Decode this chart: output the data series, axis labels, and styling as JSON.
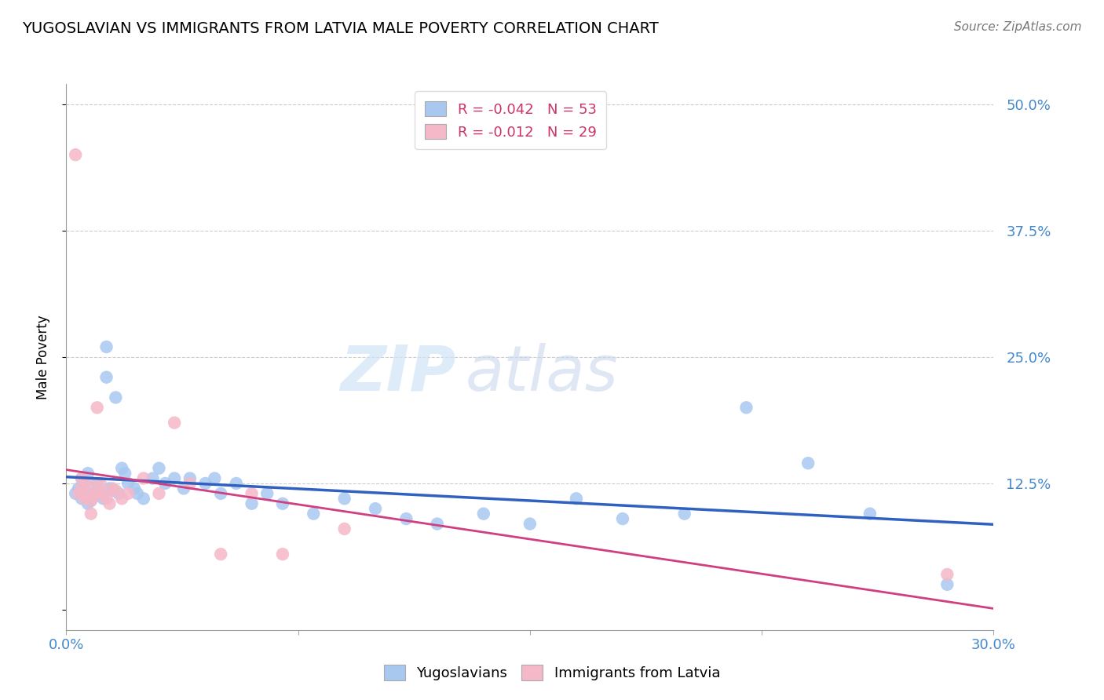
{
  "title": "YUGOSLAVIAN VS IMMIGRANTS FROM LATVIA MALE POVERTY CORRELATION CHART",
  "source": "Source: ZipAtlas.com",
  "ylabel": "Male Poverty",
  "xlim": [
    0.0,
    0.3
  ],
  "ylim": [
    -0.02,
    0.52
  ],
  "yticks": [
    0.0,
    0.125,
    0.25,
    0.375,
    0.5
  ],
  "ytick_labels": [
    "",
    "12.5%",
    "25.0%",
    "37.5%",
    "50.0%"
  ],
  "xticks": [
    0.0,
    0.075,
    0.15,
    0.225,
    0.3
  ],
  "xtick_labels": [
    "0.0%",
    "",
    "",
    "",
    "30.0%"
  ],
  "blue_R": "-0.042",
  "blue_N": "53",
  "pink_R": "-0.012",
  "pink_N": "29",
  "blue_color": "#a8c8f0",
  "pink_color": "#f5b8c8",
  "blue_line_color": "#3060c0",
  "pink_line_color": "#d04080",
  "grid_color": "#cccccc",
  "watermark_zip": "ZIP",
  "watermark_atlas": "atlas",
  "blue_x": [
    0.003,
    0.004,
    0.005,
    0.005,
    0.006,
    0.007,
    0.007,
    0.008,
    0.008,
    0.009,
    0.01,
    0.01,
    0.011,
    0.012,
    0.013,
    0.013,
    0.014,
    0.015,
    0.016,
    0.017,
    0.018,
    0.019,
    0.02,
    0.022,
    0.023,
    0.025,
    0.028,
    0.03,
    0.032,
    0.035,
    0.038,
    0.04,
    0.045,
    0.048,
    0.05,
    0.055,
    0.06,
    0.065,
    0.07,
    0.08,
    0.09,
    0.1,
    0.11,
    0.12,
    0.135,
    0.15,
    0.165,
    0.18,
    0.2,
    0.22,
    0.24,
    0.26,
    0.285
  ],
  "blue_y": [
    0.115,
    0.12,
    0.11,
    0.13,
    0.125,
    0.105,
    0.135,
    0.115,
    0.108,
    0.112,
    0.118,
    0.125,
    0.115,
    0.11,
    0.26,
    0.23,
    0.12,
    0.118,
    0.21,
    0.115,
    0.14,
    0.135,
    0.125,
    0.12,
    0.115,
    0.11,
    0.13,
    0.14,
    0.125,
    0.13,
    0.12,
    0.13,
    0.125,
    0.13,
    0.115,
    0.125,
    0.105,
    0.115,
    0.105,
    0.095,
    0.11,
    0.1,
    0.09,
    0.085,
    0.095,
    0.085,
    0.11,
    0.09,
    0.095,
    0.2,
    0.145,
    0.095,
    0.025
  ],
  "pink_x": [
    0.003,
    0.004,
    0.005,
    0.005,
    0.006,
    0.007,
    0.007,
    0.008,
    0.008,
    0.009,
    0.01,
    0.01,
    0.011,
    0.012,
    0.013,
    0.014,
    0.015,
    0.016,
    0.018,
    0.02,
    0.025,
    0.03,
    0.035,
    0.04,
    0.05,
    0.06,
    0.07,
    0.09,
    0.285
  ],
  "pink_y": [
    0.45,
    0.115,
    0.13,
    0.12,
    0.11,
    0.125,
    0.115,
    0.108,
    0.095,
    0.112,
    0.2,
    0.118,
    0.125,
    0.115,
    0.11,
    0.105,
    0.12,
    0.118,
    0.11,
    0.115,
    0.13,
    0.115,
    0.185,
    0.125,
    0.055,
    0.115,
    0.055,
    0.08,
    0.035
  ]
}
